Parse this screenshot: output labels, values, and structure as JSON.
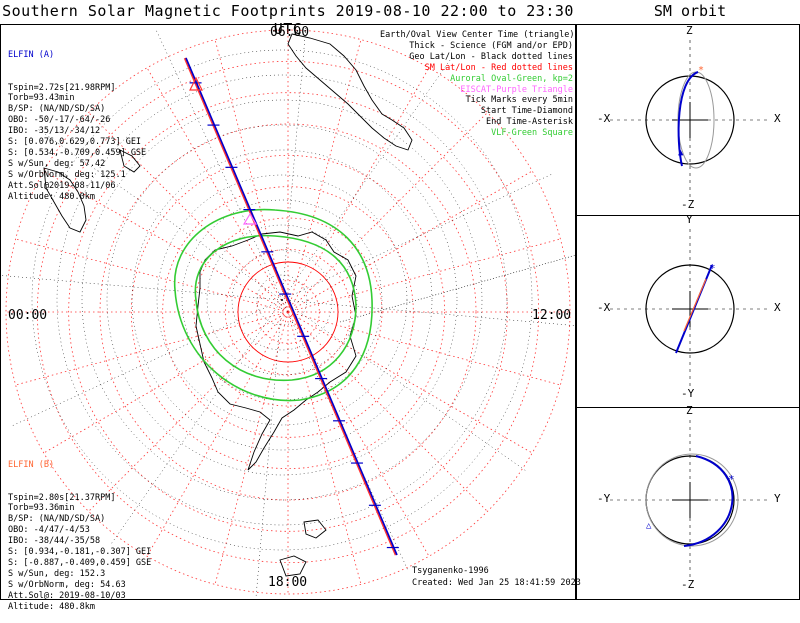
{
  "title": "Southern Solar Magnetic Footprints 2019-08-10 22:00 to 23:30 UTC",
  "orbit_title": "SM orbit",
  "hour_labels": {
    "top": "06:00",
    "left": "00:00",
    "right": "12:00",
    "bottom": "18:00"
  },
  "legend": [
    {
      "text": "Earth/Oval View Center Time (triangle)",
      "color": "#000000"
    },
    {
      "text": "Thick - Science (FGM and/or EPD)",
      "color": "#000000"
    },
    {
      "text": "Geo Lat/Lon - Black dotted lines",
      "color": "#000000"
    },
    {
      "text": "SM Lat/Lon - Red dotted lines",
      "color": "#ff0000"
    },
    {
      "text": "Auroral Oval-Green, kp=2",
      "color": "#33cc33"
    },
    {
      "text": "EISCAT-Purple Triangle",
      "color": "#ff66ff"
    },
    {
      "text": "Tick Marks every 5min",
      "color": "#000000"
    },
    {
      "text": "Start Time-Diamond",
      "color": "#000000"
    },
    {
      "text": "End Time-Asterisk",
      "color": "#000000"
    },
    {
      "text": "VLF-Green Square",
      "color": "#33cc33"
    }
  ],
  "elfin_a": {
    "name": "ELFIN (A)",
    "color": "#0000cc",
    "lines": [
      "Tspin=2.72s[21.98RPM]",
      "Torb=93.43min",
      "B/SP: (NA/ND/SD/SA)",
      "OBO: -50/-17/-64/-26",
      "IBO: -35/13/-34/12",
      "S: [0.076,0.629,0.773] GEI",
      "S: [0.534,-0.709,0.459] GSE",
      "S w/Sun, deg: 57.42",
      "S w/OrbNorm, deg: 125.1",
      "Att.Sol@2019-08-11/06",
      "Altitude: 480.0km"
    ]
  },
  "elfin_b": {
    "name": "ELFIN (B)",
    "color": "#ff6633",
    "lines": [
      "Tspin=2.80s[21.37RPM]",
      "Torb=93.36min",
      "B/SP: (NA/ND/SD/SA)",
      "OBO: -4/47/-4/53",
      "IBO: -38/44/-35/58",
      "S: [0.934,-0.181,-0.307] GEI",
      "S: [-0.887,-0.409,0.459] GSE",
      "S w/Sun, deg: 152.3",
      "S w/OrbNorm, deg: 54.63",
      "Att.Sol@: 2019-08-10/03",
      "Altitude: 480.8km"
    ]
  },
  "credit": "Tsyganenko-1996",
  "created": "Created: Wed Jan 25 18:41:59 2023",
  "orbit_panels": [
    {
      "top": "Z",
      "bottom": "-Z",
      "left": "-X",
      "right": "X"
    },
    {
      "top": "Y",
      "bottom": "-Y",
      "left": "-X",
      "right": "X"
    },
    {
      "top": "Z",
      "bottom": "-Z",
      "left": "-Y",
      "right": "Y"
    }
  ],
  "colors": {
    "elfin_a": "#0000cc",
    "elfin_b": "#ff6633",
    "sm_grid": "#ff0000",
    "geo_grid": "#000000",
    "oval": "#33cc33"
  }
}
